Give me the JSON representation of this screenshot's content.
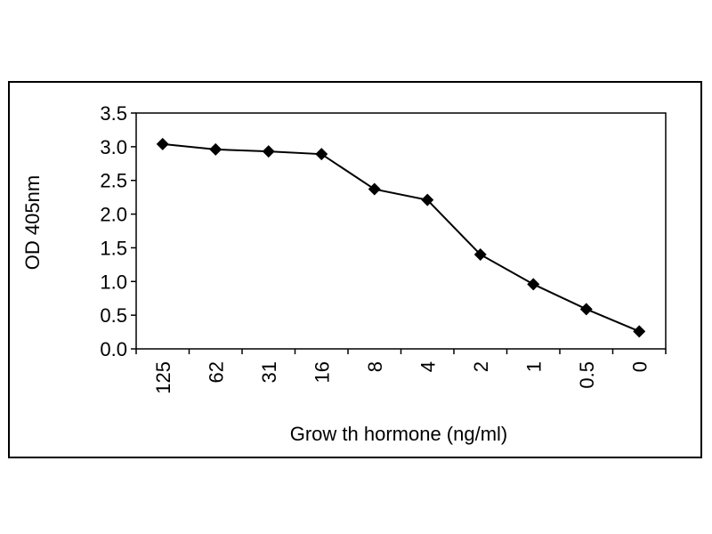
{
  "chart_data": {
    "type": "line",
    "title": "",
    "xlabel": "Grow th hormone (ng/ml)",
    "ylabel": "OD 405nm",
    "categories": [
      "125",
      "62",
      "31",
      "16",
      "8",
      "4",
      "2",
      "1",
      "0.5",
      "0"
    ],
    "series": [
      {
        "values": [
          3.04,
          2.96,
          2.93,
          2.89,
          2.37,
          2.21,
          1.4,
          0.96,
          0.59,
          0.26
        ],
        "marker": "diamond",
        "color": "#000000"
      }
    ],
    "yticks": [
      "0.0",
      "0.5",
      "1.0",
      "1.5",
      "2.0",
      "2.5",
      "3.0",
      "3.5"
    ],
    "ylim": [
      0,
      3.5
    ],
    "grid": false,
    "legend": "none",
    "x_tick_rotation": "vertical"
  }
}
